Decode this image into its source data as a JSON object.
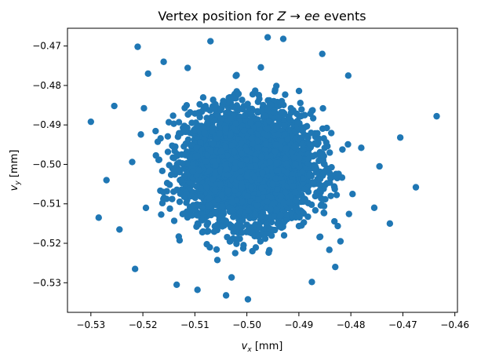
{
  "chart_data": {
    "type": "scatter",
    "title_parts": [
      "Vertex position for ",
      "Z",
      " → ",
      "ee",
      " events"
    ],
    "xlabel_parts": [
      "v",
      "x",
      " [mm]"
    ],
    "ylabel_parts": [
      "v",
      "y",
      " [mm]"
    ],
    "xlim": [
      -0.5345,
      -0.4595
    ],
    "ylim": [
      -0.5375,
      -0.4655
    ],
    "xticks": [
      -0.53,
      -0.52,
      -0.51,
      -0.5,
      -0.49,
      -0.48,
      -0.47,
      -0.46
    ],
    "xtick_labels": [
      "−0.53",
      "−0.52",
      "−0.51",
      "−0.50",
      "−0.49",
      "−0.48",
      "−0.47",
      "−0.46"
    ],
    "yticks": [
      -0.53,
      -0.52,
      -0.51,
      -0.5,
      -0.49,
      -0.48,
      -0.47
    ],
    "ytick_labels": [
      "−0.53",
      "−0.52",
      "−0.51",
      "−0.50",
      "−0.49",
      "−0.48",
      "−0.47"
    ],
    "grid": false,
    "legend": "none",
    "marker_color": "#1f77b4",
    "distribution": {
      "center_x": -0.4995,
      "center_y": -0.5005,
      "sigma_x": 0.006,
      "sigma_y": 0.007
    },
    "outliers": [
      [
        -0.4635,
        -0.4878
      ],
      [
        -0.4675,
        -0.5058
      ],
      [
        -0.4705,
        -0.4932
      ],
      [
        -0.53,
        -0.4892
      ],
      [
        -0.5285,
        -0.5135
      ],
      [
        -0.521,
        -0.4702
      ],
      [
        -0.504,
        -0.5332
      ],
      [
        -0.4998,
        -0.5342
      ],
      [
        -0.496,
        -0.4678
      ],
      [
        -0.493,
        -0.4682
      ],
      [
        -0.507,
        -0.4688
      ],
      [
        -0.5215,
        -0.5265
      ],
      [
        -0.478,
        -0.4958
      ],
      [
        -0.4745,
        -0.5005
      ],
      [
        -0.4755,
        -0.511
      ],
      [
        -0.4805,
        -0.4775
      ],
      [
        -0.482,
        -0.5195
      ],
      [
        -0.5135,
        -0.5305
      ],
      [
        -0.4875,
        -0.5298
      ],
      [
        -0.5095,
        -0.5318
      ],
      [
        -0.527,
        -0.504
      ],
      [
        -0.5255,
        -0.4852
      ],
      [
        -0.4855,
        -0.472
      ],
      [
        -0.516,
        -0.474
      ],
      [
        -0.4725,
        -0.515
      ],
      [
        -0.5245,
        -0.5165
      ],
      [
        -0.483,
        -0.526
      ],
      [
        -0.519,
        -0.477
      ]
    ]
  }
}
